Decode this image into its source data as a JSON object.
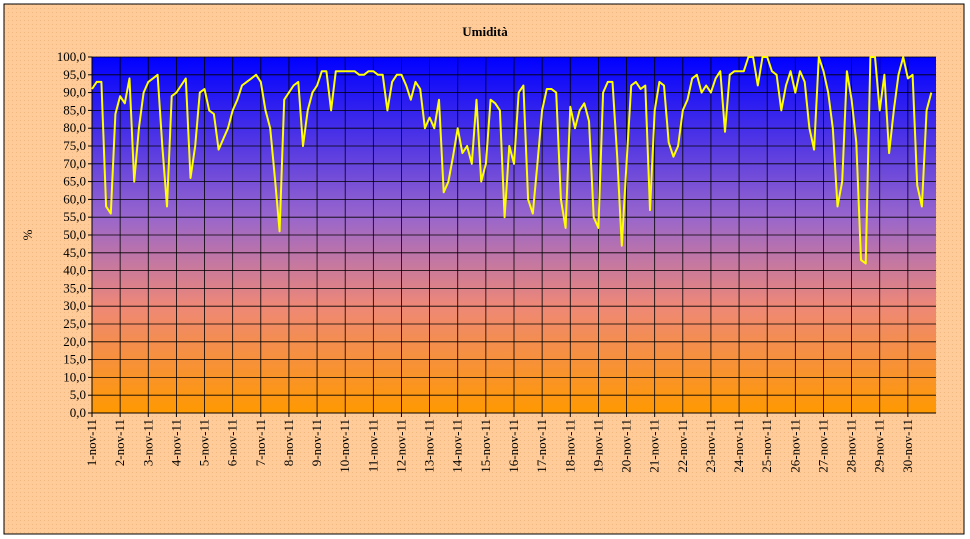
{
  "chart_data": {
    "type": "line",
    "title": "Umidità",
    "y_label": "%",
    "color": "#ffff00",
    "grid": true,
    "xlim": [
      0,
      720
    ],
    "ylim": [
      0,
      100
    ],
    "xticks": [
      {
        "value": 0,
        "label": "1-nov-11"
      },
      {
        "value": 24,
        "label": "2-nov-11"
      },
      {
        "value": 48,
        "label": "3-nov-11"
      },
      {
        "value": 72,
        "label": "4-nov-11"
      },
      {
        "value": 96,
        "label": "5-nov-11"
      },
      {
        "value": 120,
        "label": "6-nov-11"
      },
      {
        "value": 144,
        "label": "7-nov-11"
      },
      {
        "value": 168,
        "label": "8-nov-11"
      },
      {
        "value": 192,
        "label": "9-nov-11"
      },
      {
        "value": 216,
        "label": "10-nov-11"
      },
      {
        "value": 240,
        "label": "11-nov-11"
      },
      {
        "value": 264,
        "label": "12-nov-11"
      },
      {
        "value": 288,
        "label": "13-nov-11"
      },
      {
        "value": 312,
        "label": "14-nov-11"
      },
      {
        "value": 336,
        "label": "15-nov-11"
      },
      {
        "value": 360,
        "label": "16-nov-11"
      },
      {
        "value": 384,
        "label": "17-nov-11"
      },
      {
        "value": 408,
        "label": "18-nov-11"
      },
      {
        "value": 432,
        "label": "19-nov-11"
      },
      {
        "value": 456,
        "label": "20-nov-11"
      },
      {
        "value": 480,
        "label": "21-nov-11"
      },
      {
        "value": 504,
        "label": "22-nov-11"
      },
      {
        "value": 528,
        "label": "23-nov-11"
      },
      {
        "value": 552,
        "label": "24-nov-11"
      },
      {
        "value": 576,
        "label": "25-nov-11"
      },
      {
        "value": 600,
        "label": "26-nov-11"
      },
      {
        "value": 624,
        "label": "27-nov-11"
      },
      {
        "value": 648,
        "label": "28-nov-11"
      },
      {
        "value": 672,
        "label": "29-nov-11"
      },
      {
        "value": 696,
        "label": "30-nov-11"
      }
    ],
    "yticks": [
      {
        "value": 0,
        "label": "0,0"
      },
      {
        "value": 5,
        "label": "5,0"
      },
      {
        "value": 10,
        "label": "10,0"
      },
      {
        "value": 15,
        "label": "15,0"
      },
      {
        "value": 20,
        "label": "20,0"
      },
      {
        "value": 25,
        "label": "25,0"
      },
      {
        "value": 30,
        "label": "30,0"
      },
      {
        "value": 35,
        "label": "35,0"
      },
      {
        "value": 40,
        "label": "40,0"
      },
      {
        "value": 45,
        "label": "45,0"
      },
      {
        "value": 50,
        "label": "50,0"
      },
      {
        "value": 55,
        "label": "55,0"
      },
      {
        "value": 60,
        "label": "60,0"
      },
      {
        "value": 65,
        "label": "65,0"
      },
      {
        "value": 70,
        "label": "70,0"
      },
      {
        "value": 75,
        "label": "75,0"
      },
      {
        "value": 80,
        "label": "80,0"
      },
      {
        "value": 85,
        "label": "85,0"
      },
      {
        "value": 90,
        "label": "90,0"
      },
      {
        "value": 95,
        "label": "95,0"
      },
      {
        "value": 100,
        "label": "100,0"
      }
    ],
    "x": [
      0,
      4,
      8,
      12,
      16,
      20,
      24,
      28,
      32,
      36,
      40,
      44,
      48,
      52,
      56,
      60,
      64,
      68,
      72,
      76,
      80,
      84,
      88,
      92,
      96,
      100,
      104,
      108,
      112,
      116,
      120,
      124,
      128,
      132,
      136,
      140,
      144,
      148,
      152,
      156,
      160,
      164,
      168,
      172,
      176,
      180,
      184,
      188,
      192,
      196,
      200,
      204,
      208,
      212,
      216,
      220,
      224,
      228,
      232,
      236,
      240,
      244,
      248,
      252,
      256,
      260,
      264,
      268,
      272,
      276,
      280,
      284,
      288,
      292,
      296,
      300,
      304,
      308,
      312,
      316,
      320,
      324,
      328,
      332,
      336,
      340,
      344,
      348,
      352,
      356,
      360,
      364,
      368,
      372,
      376,
      380,
      384,
      388,
      392,
      396,
      400,
      404,
      408,
      412,
      416,
      420,
      424,
      428,
      432,
      436,
      440,
      444,
      448,
      452,
      456,
      460,
      464,
      468,
      472,
      476,
      480,
      484,
      488,
      492,
      496,
      500,
      504,
      508,
      512,
      516,
      520,
      524,
      528,
      532,
      536,
      540,
      544,
      548,
      552,
      556,
      560,
      564,
      568,
      572,
      576,
      580,
      584,
      588,
      592,
      596,
      600,
      604,
      608,
      612,
      616,
      620,
      624,
      628,
      632,
      636,
      640,
      644,
      648,
      652,
      656,
      660,
      664,
      668,
      672,
      676,
      680,
      684,
      688,
      692,
      696,
      700,
      704,
      708,
      712,
      716
    ],
    "values": [
      91,
      93,
      93,
      58,
      56,
      84,
      89,
      87,
      94,
      65,
      80,
      90,
      93,
      94,
      95,
      75,
      58,
      89,
      90,
      92,
      94,
      66,
      75,
      90,
      91,
      85,
      84,
      74,
      77,
      80,
      85,
      88,
      92,
      93,
      94,
      95,
      93,
      85,
      80,
      66,
      51,
      88,
      90,
      92,
      93,
      75,
      85,
      90,
      92,
      96,
      96,
      85,
      96,
      96,
      96,
      96,
      96,
      95,
      95,
      96,
      96,
      95,
      95,
      85,
      93,
      95,
      95,
      92,
      88,
      93,
      91,
      80,
      83,
      80,
      88,
      62,
      65,
      72,
      80,
      73,
      75,
      70,
      88,
      65,
      70,
      88,
      87,
      85,
      55,
      75,
      70,
      90,
      92,
      60,
      56,
      70,
      85,
      91,
      91,
      90,
      60,
      52,
      86,
      80,
      85,
      87,
      82,
      55,
      52,
      90,
      93,
      93,
      72,
      47,
      70,
      92,
      93,
      91,
      92,
      57,
      85,
      93,
      92,
      76,
      72,
      75,
      85,
      88,
      94,
      95,
      90,
      92,
      90,
      94,
      96,
      79,
      95,
      96,
      96,
      96,
      100,
      100,
      92,
      100,
      100,
      96,
      95,
      85,
      92,
      96,
      90,
      96,
      93,
      80,
      74,
      100,
      96,
      90,
      80,
      58,
      65,
      96,
      88,
      76,
      43,
      42,
      100,
      100,
      85,
      95,
      73,
      85,
      95,
      100,
      94,
      95,
      64,
      58,
      85,
      90
    ]
  }
}
